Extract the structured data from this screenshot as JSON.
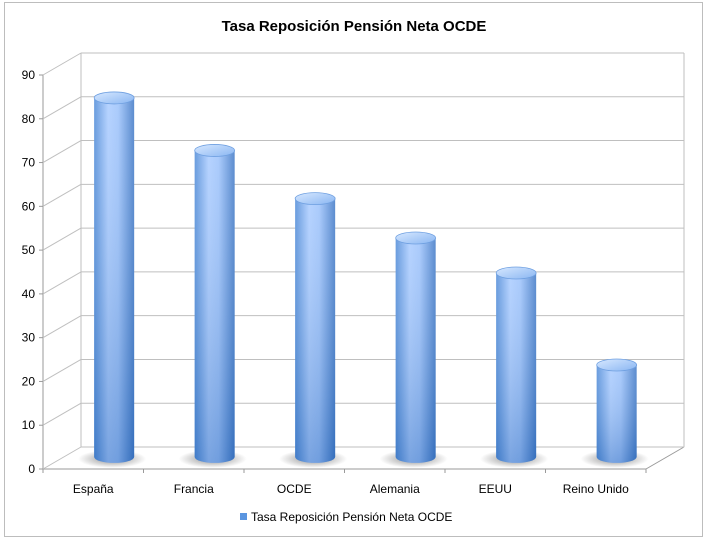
{
  "chart_data": {
    "type": "bar",
    "style": "3d-cylinder",
    "title": "Tasa Reposición Pensión Neta OCDE",
    "xlabel": "",
    "ylabel": "",
    "categories": [
      "España",
      "Francia",
      "OCDE",
      "Alemania",
      "EEUU",
      "Reino Unido"
    ],
    "series": [
      {
        "name": "Tasa Reposición Pensión Neta OCDE",
        "values": [
          82,
          70,
          59,
          50,
          42,
          21
        ]
      }
    ],
    "ylim": [
      0,
      90
    ],
    "yticks": [
      "0",
      "10",
      "20",
      "30",
      "40",
      "50",
      "60",
      "70",
      "80",
      "90"
    ],
    "grid": true,
    "legend_position": "bottom",
    "colors": {
      "bar_light": "#bcd7ff",
      "bar_mid": "#7fb0f0",
      "bar_dark": "#3f7fd0",
      "grid": "#bfbfbf"
    }
  }
}
